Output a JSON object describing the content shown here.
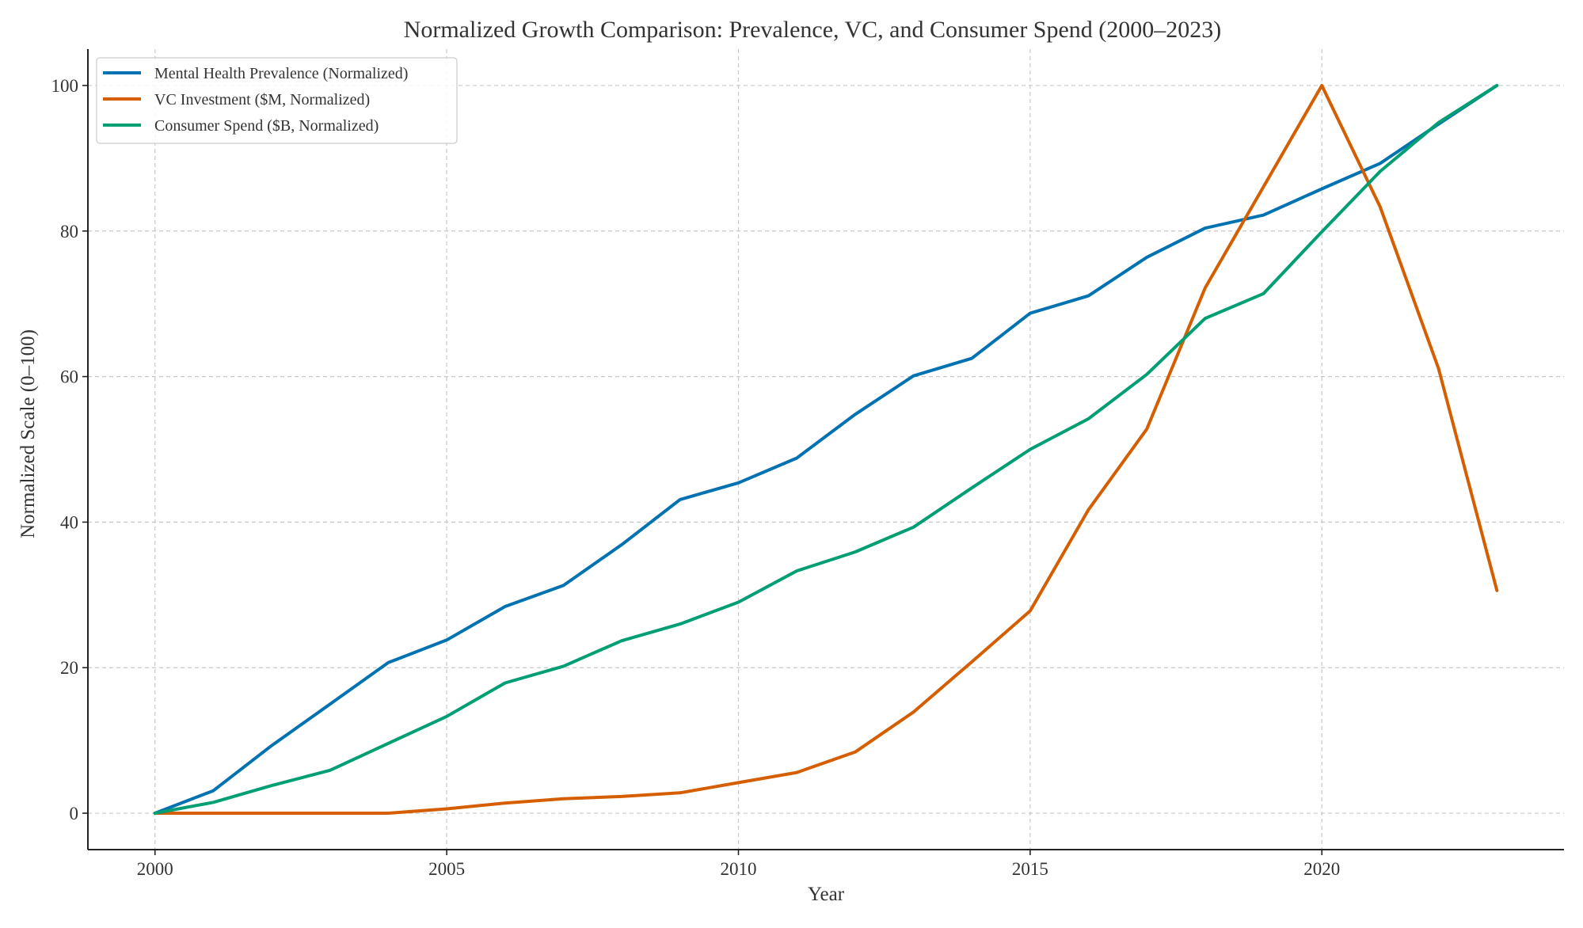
{
  "chart_data": {
    "type": "line",
    "title": "Normalized Growth Comparison: Prevalence, VC, and Consumer Spend (2000–2023)",
    "xlabel": "Year",
    "ylabel": "Normalized Scale (0–100)",
    "xlim": [
      1998.85,
      2024.15
    ],
    "ylim": [
      -5,
      105
    ],
    "xticks": [
      2000,
      2005,
      2010,
      2015,
      2020
    ],
    "yticks": [
      0,
      20,
      40,
      60,
      80,
      100
    ],
    "grid": true,
    "legend_position": "top-left",
    "x": [
      2000,
      2001,
      2002,
      2003,
      2004,
      2005,
      2006,
      2007,
      2008,
      2009,
      2010,
      2011,
      2012,
      2013,
      2014,
      2015,
      2016,
      2017,
      2018,
      2019,
      2020,
      2021,
      2022,
      2023
    ],
    "series": [
      {
        "name": "Mental Health Prevalence (Normalized)",
        "color": "#0072B2",
        "values": [
          0,
          3.1,
          9.3,
          15,
          20.7,
          23.8,
          28.4,
          31.3,
          36.9,
          43.1,
          45.4,
          48.8,
          54.8,
          60.1,
          62.5,
          68.7,
          71.1,
          76.4,
          80.4,
          82.2,
          85.8,
          89.3,
          94.7,
          100
        ]
      },
      {
        "name": "VC Investment ($M, Normalized)",
        "color": "#D55E00",
        "values": [
          0,
          0,
          0,
          0,
          0,
          0.6,
          1.4,
          2,
          2.3,
          2.8,
          4.2,
          5.6,
          8.4,
          13.9,
          20.8,
          27.8,
          41.7,
          52.8,
          72.2,
          86.1,
          100,
          83.3,
          61.1,
          30.6
        ]
      },
      {
        "name": "Consumer Spend ($B, Normalized)",
        "color": "#009E73",
        "values": [
          0,
          1.5,
          3.8,
          5.9,
          9.6,
          13.3,
          17.9,
          20.2,
          23.7,
          26,
          29,
          33.3,
          35.9,
          39.3,
          44.7,
          50,
          54.2,
          60.3,
          68,
          71.4,
          79.9,
          88.2,
          94.9,
          100
        ]
      }
    ]
  }
}
